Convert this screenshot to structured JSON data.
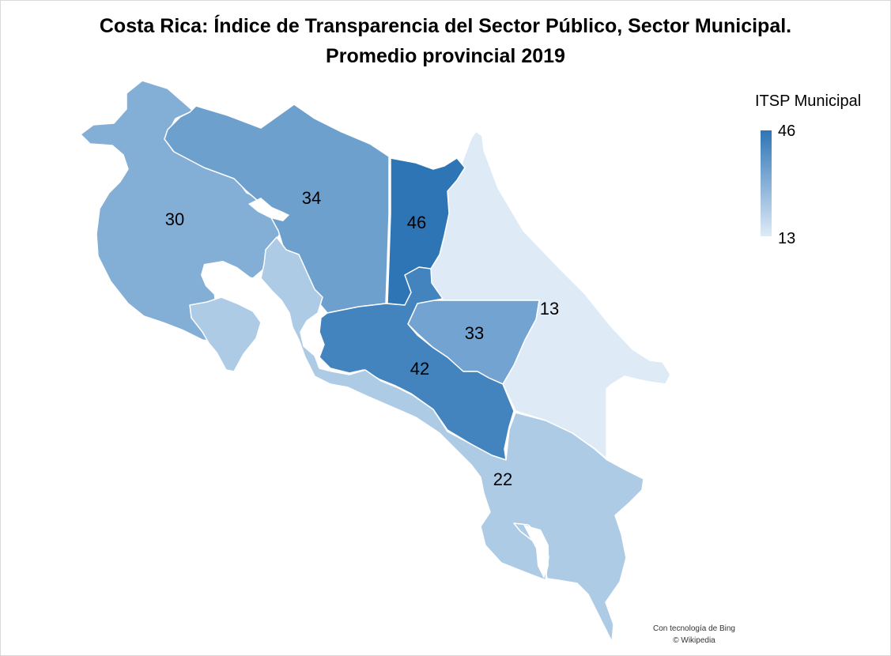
{
  "title": {
    "line1": "Costa Rica: Índice de Transparencia del Sector Público, Sector Municipal.",
    "line2": "Promedio provincial 2019"
  },
  "legend": {
    "title": "ITSP Municipal",
    "max": "46",
    "min": "13",
    "color_max": "#2E75B6",
    "color_min": "#DEEBF7"
  },
  "chart_data": {
    "type": "choropleth",
    "title": "Costa Rica: Índice de Transparencia del Sector Público, Sector Municipal. Promedio provincial 2019",
    "legend_title": "ITSP Municipal",
    "value_range": [
      13,
      46
    ],
    "legend_placement": "top-right",
    "regions": [
      {
        "value": 30
      },
      {
        "value": 34
      },
      {
        "value": 46
      },
      {
        "value": 13
      },
      {
        "value": 33
      },
      {
        "value": 42
      },
      {
        "value": 22
      }
    ]
  },
  "attribution": {
    "line1": "Con tecnología de Bing",
    "line2": "© Wikipedia"
  }
}
